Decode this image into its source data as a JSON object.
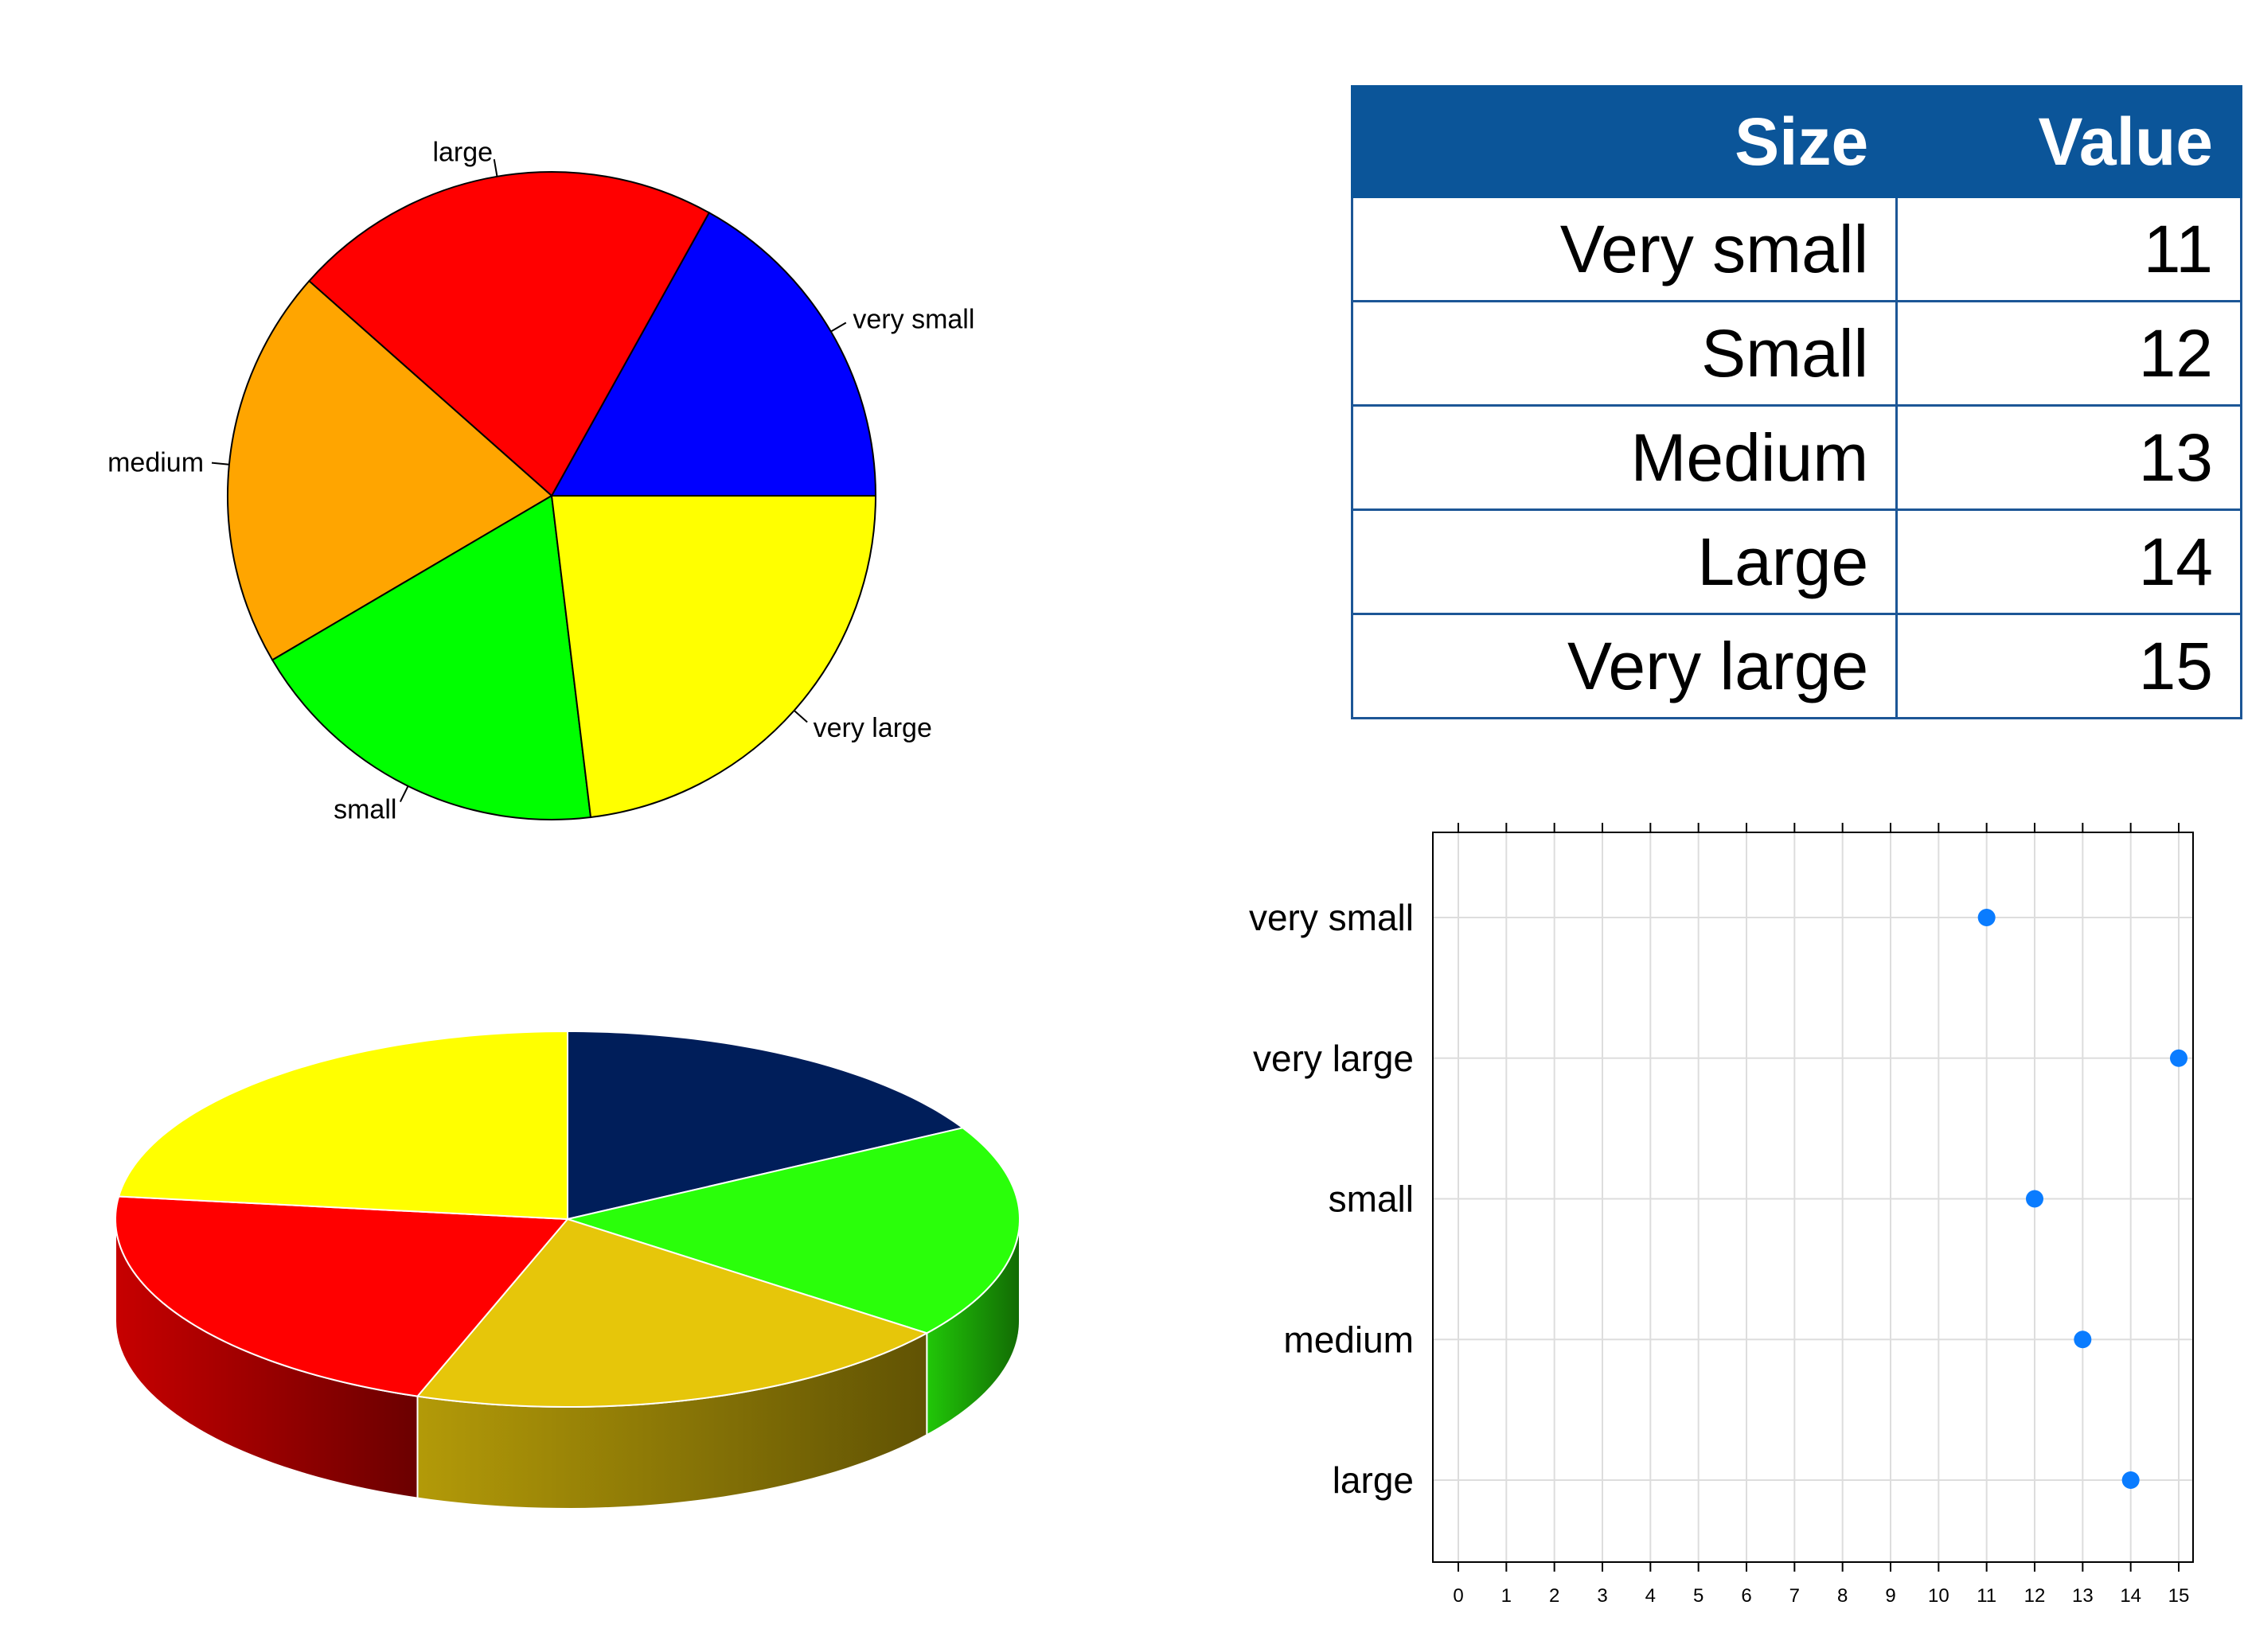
{
  "chart_data": [
    {
      "type": "pie",
      "labels": [
        "very small",
        "small",
        "medium",
        "large",
        "very large"
      ],
      "values": [
        11,
        12,
        13,
        14,
        15
      ],
      "colors": [
        "#0000ff",
        "#00ff00",
        "#ffa500",
        "#ff0000",
        "#ffff00"
      ],
      "order_counterclockwise_from_east": [
        "very small",
        "large",
        "medium",
        "small",
        "very large"
      ]
    },
    {
      "type": "table",
      "columns": [
        "Size",
        "Value"
      ],
      "rows": [
        [
          "Very small",
          "11"
        ],
        [
          "Small",
          "12"
        ],
        [
          "Medium",
          "13"
        ],
        [
          "Large",
          "14"
        ],
        [
          "Very large",
          "15"
        ]
      ],
      "header_color": "#0b5599"
    },
    {
      "type": "pie",
      "style": "3d",
      "values": [
        11,
        12,
        13,
        14,
        15
      ],
      "slice_order_clockwise_from_north": [
        "very small",
        "small",
        "medium",
        "large",
        "very large"
      ],
      "colors": [
        "#001e5a",
        "#2aff0a",
        "#e6c60a",
        "#ff0000",
        "#ffff00"
      ]
    },
    {
      "type": "scatter",
      "style": "dotplot",
      "categories": [
        "very small",
        "very large",
        "small",
        "medium",
        "large"
      ],
      "values": [
        11,
        15,
        12,
        13,
        14
      ],
      "xlim": [
        0,
        15
      ],
      "xticks": [
        "0",
        "1",
        "2",
        "3",
        "4",
        "5",
        "6",
        "7",
        "8",
        "9",
        "10",
        "11",
        "12",
        "13",
        "14",
        "15"
      ],
      "grid": true,
      "point_color": "#0a7cff"
    }
  ]
}
